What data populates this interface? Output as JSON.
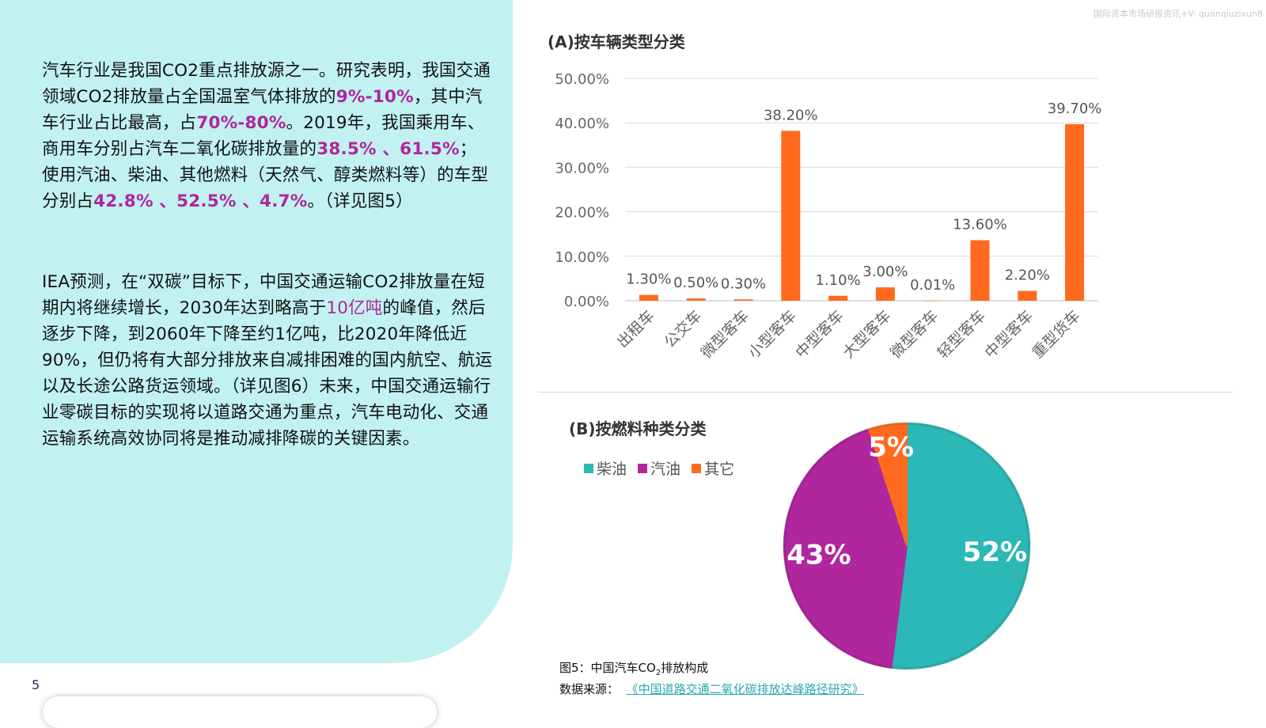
{
  "watermark": "国际资本市场研报资讯+V: quanqiuzixun8",
  "page_number": "5",
  "left_text": {
    "p1": [
      {
        "t": "汽车行业是我国CO2重点排放源之一。研究表明，我国交通领域CO2排放量占全国温室气体排放的"
      },
      {
        "t": "9%-10%",
        "hl": true
      },
      {
        "t": "，其中汽车行业占比最高，占"
      },
      {
        "t": "70%-80%",
        "hl": true
      },
      {
        "t": "。2019年，我国乘用车、商用车分别占汽车二氧化碳排放量的"
      },
      {
        "t": "38.5% 、61.5%",
        "hl": true
      },
      {
        "t": "；使用汽油、柴油、其他燃料（天然气、醇类燃料等）的车型分别占"
      },
      {
        "t": "42.8% 、52.5% 、4.7%",
        "hl": true
      },
      {
        "t": "。（详见图5）"
      }
    ],
    "p2": [
      {
        "t": "IEA预测，在“双碳”目标下，中国交通运输CO2排放量在短期内将继续增长，2030年达到略高于"
      },
      {
        "t": "10亿吨",
        "hl2": true
      },
      {
        "t": "的峰值，然后逐步下降，到2060年下降至约1亿吨，比2020年降低近90%，但仍将有大部分排放来自减排困难的国内航空、航运以及长途公路货运领域。（详见图6）未来，中国交通运输行业零碳目标的实现将以道路交通为重点，汽车电动化、交通运输系统高效协同将是推动减排降碳的关键因素。"
      }
    ]
  },
  "chart_data": [
    {
      "type": "bar",
      "title": "(A)按车辆类型分类",
      "categories": [
        "出租车",
        "公交车",
        "微型客车",
        "小型客车",
        "中型客车",
        "大型客车",
        "微型客车",
        "轻型客车",
        "中型客车",
        "重型货车"
      ],
      "values": [
        1.3,
        0.5,
        0.3,
        38.2,
        1.1,
        3.0,
        0.01,
        13.6,
        2.2,
        39.7
      ],
      "data_labels": [
        "1.30%",
        "0.50%",
        "0.30%",
        "38.20%",
        "1.10%",
        "3.00%",
        "0.01%",
        "13.60%",
        "2.20%",
        "39.70%"
      ],
      "y_ticks": [
        "0.00%",
        "10.00%",
        "20.00%",
        "30.00%",
        "40.00%",
        "50.00%"
      ],
      "ylim": [
        0,
        50
      ],
      "grid": true,
      "color": "#ff6a1f"
    },
    {
      "type": "pie",
      "title": "(B)按燃料种类分类",
      "legend_position": "top-left",
      "slices": [
        {
          "label": "柴油",
          "value": 52,
          "display": "52%",
          "color": "#2bb8b6"
        },
        {
          "label": "汽油",
          "value": 43,
          "display": "43%",
          "color": "#b0269d"
        },
        {
          "label": "其它",
          "value": 5,
          "display": "5%",
          "color": "#ff6a1f"
        }
      ]
    }
  ],
  "caption": {
    "line1_prefix": "图5：中国汽车CO",
    "line1_sub": "2",
    "line1_suffix": "排放构成",
    "line2_prefix": "数据来源：",
    "line2_link": "《中国道路交通二氧化碳排放达峰路径研究》"
  }
}
